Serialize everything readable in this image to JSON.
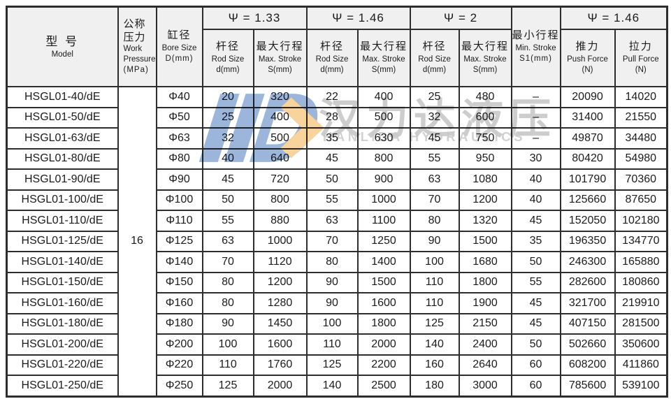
{
  "watermark": {
    "cn": "汉力达液压",
    "en": "HANLIDA HYDRAULICS",
    "logo_blue": "#3a6fb8",
    "logo_yellow": "#f2a93b"
  },
  "table": {
    "groups": [
      {
        "label": "Ψ = 1.33"
      },
      {
        "label": "Ψ = 1.46"
      },
      {
        "label": "Ψ = 2"
      },
      {
        "label": "Ψ = 1.46"
      }
    ],
    "headers": {
      "model": {
        "cn": "型 号",
        "en": "Model"
      },
      "pressure": {
        "cn1": "公称",
        "cn2": "压力",
        "en1": "Work",
        "en2": "Pressure",
        "en3": "(MPa)"
      },
      "bore": {
        "cn": "缸径",
        "en": "Bore Size",
        "unit": "D(mm)"
      },
      "rod": {
        "cn": "杆径",
        "en": "Rod Size",
        "unit": "d(mm)"
      },
      "stroke": {
        "cn": "最大行程",
        "en": "Max. Stroke",
        "unit": "S(mm)"
      },
      "min_stroke": {
        "cn": "最小行程",
        "en": "Min. Stroke",
        "unit": "S1(mm)"
      },
      "push": {
        "cn": "推力",
        "en": "Push Force",
        "unit": "(N)"
      },
      "pull": {
        "cn": "拉力",
        "en": "Pull Force",
        "unit": "(N)"
      }
    },
    "pressure_value": "16",
    "rows": [
      [
        "HSGL01-40/dE",
        "Φ40",
        "20",
        "320",
        "22",
        "400",
        "25",
        "480",
        "–",
        "20090",
        "14020"
      ],
      [
        "HSGL01-50/dE",
        "Φ50",
        "25",
        "400",
        "28",
        "500",
        "32",
        "600",
        "–",
        "31400",
        "21550"
      ],
      [
        "HSGL01-63/dE",
        "Φ63",
        "32",
        "500",
        "35",
        "630",
        "45",
        "750",
        "–",
        "49870",
        "34480"
      ],
      [
        "HSGL01-80/dE",
        "Φ80",
        "40",
        "640",
        "45",
        "800",
        "55",
        "950",
        "30",
        "80420",
        "54980"
      ],
      [
        "HSGL01-90/dE",
        "Φ90",
        "45",
        "720",
        "50",
        "900",
        "63",
        "1080",
        "40",
        "101790",
        "70360"
      ],
      [
        "HSGL01-100/dE",
        "Φ100",
        "50",
        "800",
        "55",
        "1000",
        "70",
        "1200",
        "40",
        "125660",
        "87650"
      ],
      [
        "HSGL01-110/dE",
        "Φ110",
        "55",
        "880",
        "63",
        "1100",
        "80",
        "1320",
        "45",
        "152050",
        "102180"
      ],
      [
        "HSGL01-125/dE",
        "Φ125",
        "63",
        "1000",
        "70",
        "1250",
        "90",
        "1500",
        "35",
        "196350",
        "134770"
      ],
      [
        "HSGL01-140/dE",
        "Φ140",
        "70",
        "1120",
        "80",
        "1400",
        "100",
        "1680",
        "50",
        "246300",
        "165880"
      ],
      [
        "HSGL01-150/dE",
        "Φ150",
        "80",
        "1200",
        "90",
        "1500",
        "110",
        "1800",
        "55",
        "282600",
        "180860"
      ],
      [
        "HSGL01-160/dE",
        "Φ160",
        "80",
        "1280",
        "90",
        "1600",
        "110",
        "1900",
        "45",
        "321700",
        "219910"
      ],
      [
        "HSGL01-180/dE",
        "Φ180",
        "90",
        "1450",
        "100",
        "1800",
        "125",
        "2150",
        "45",
        "407150",
        "281500"
      ],
      [
        "HSGL01-200/dE",
        "Φ200",
        "100",
        "1600",
        "110",
        "2000",
        "140",
        "2400",
        "50",
        "502660",
        "350600"
      ],
      [
        "HSGL01-220/dE",
        "Φ220",
        "110",
        "1760",
        "125",
        "2200",
        "160",
        "2640",
        "60",
        "608200",
        "411860"
      ],
      [
        "HSGL01-250/dE",
        "Φ250",
        "125",
        "2000",
        "140",
        "2500",
        "180",
        "3000",
        "60",
        "785600",
        "539100"
      ]
    ]
  }
}
